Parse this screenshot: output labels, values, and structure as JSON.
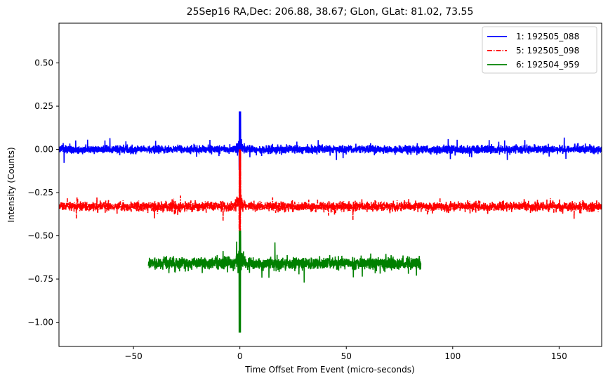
{
  "chart_data": {
    "type": "line",
    "title": "25Sep16 RA,Dec:  206.88,  38.67; GLon, GLat:   81.02,  73.55",
    "xlabel": "Time Offset From Event (micro-seconds)",
    "ylabel": "Intensity (Counts)",
    "xlim": [
      -85,
      170
    ],
    "ylim": [
      -1.14,
      0.73
    ],
    "xticks": [
      -50,
      0,
      50,
      100,
      150
    ],
    "xtick_labels": [
      "−50",
      "0",
      "50",
      "100",
      "150"
    ],
    "yticks": [
      0.5,
      0.25,
      0.0,
      -0.25,
      -0.5,
      -0.75,
      -1.0
    ],
    "ytick_labels": [
      "0.50",
      "0.25",
      "0.00",
      "−0.25",
      "−0.50",
      "−0.75",
      "−1.00"
    ],
    "grid": false,
    "legend_position": "top-right",
    "series": [
      {
        "name": "1: 192505_088",
        "color": "#0000ff",
        "style": "solid",
        "x_range": [
          -85,
          170
        ],
        "baseline": 0.0,
        "noise_amplitude": 0.03,
        "peak": {
          "x": 0,
          "y": 0.22
        },
        "trough": {
          "x": 2,
          "y": -0.12
        }
      },
      {
        "name": "5: 192505_098",
        "color": "#ff0000",
        "style": "dashdot",
        "x_range": [
          -85,
          170
        ],
        "baseline": -0.33,
        "noise_amplitude": 0.035,
        "peak": {
          "x": 0,
          "y": 0.0
        },
        "trough": {
          "x": 0.5,
          "y": -0.47
        }
      },
      {
        "name": "6: 192504_959",
        "color": "#008000",
        "style": "solid",
        "x_range": [
          -43,
          85
        ],
        "baseline": -0.66,
        "noise_amplitude": 0.045,
        "peak": {
          "x": 0,
          "y": -0.47
        },
        "trough": {
          "x": 0,
          "y": -1.06
        }
      }
    ]
  }
}
